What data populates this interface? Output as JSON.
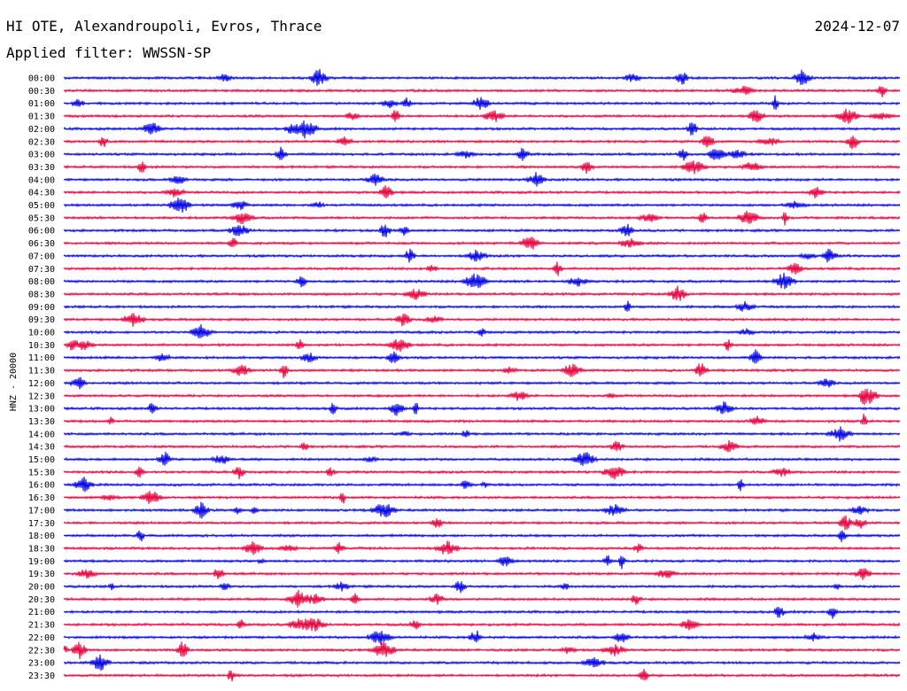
{
  "header": {
    "station": "HI OTE, Alexandroupoli, Evros, Thrace",
    "filter": "Applied filter: WWSSN-SP",
    "date": "2024-12-07"
  },
  "chart_data": {
    "type": "line",
    "title": "HI OTE, Alexandroupoli, Evros, Thrace",
    "subtitle": "Applied filter: WWSSN-SP",
    "ylabel": "HNZ - 20000",
    "xlabel": "",
    "grid": false,
    "colors": [
      "#0000e6",
      "#e6003c"
    ],
    "tick_labels": [
      "00:00",
      "00:30",
      "01:00",
      "01:30",
      "02:00",
      "02:30",
      "03:00",
      "03:30",
      "04:00",
      "04:30",
      "05:00",
      "05:30",
      "06:00",
      "06:30",
      "07:00",
      "07:30",
      "08:00",
      "08:30",
      "09:00",
      "09:30",
      "10:00",
      "10:30",
      "11:00",
      "11:30",
      "12:00",
      "12:30",
      "13:00",
      "13:30",
      "14:00",
      "14:30",
      "15:00",
      "15:30",
      "16:00",
      "16:30",
      "17:00",
      "17:30",
      "18:00",
      "18:30",
      "19:00",
      "19:30",
      "20:00",
      "20:30",
      "21:00",
      "21:30",
      "22:00",
      "22:30",
      "23:00",
      "23:30"
    ]
  }
}
